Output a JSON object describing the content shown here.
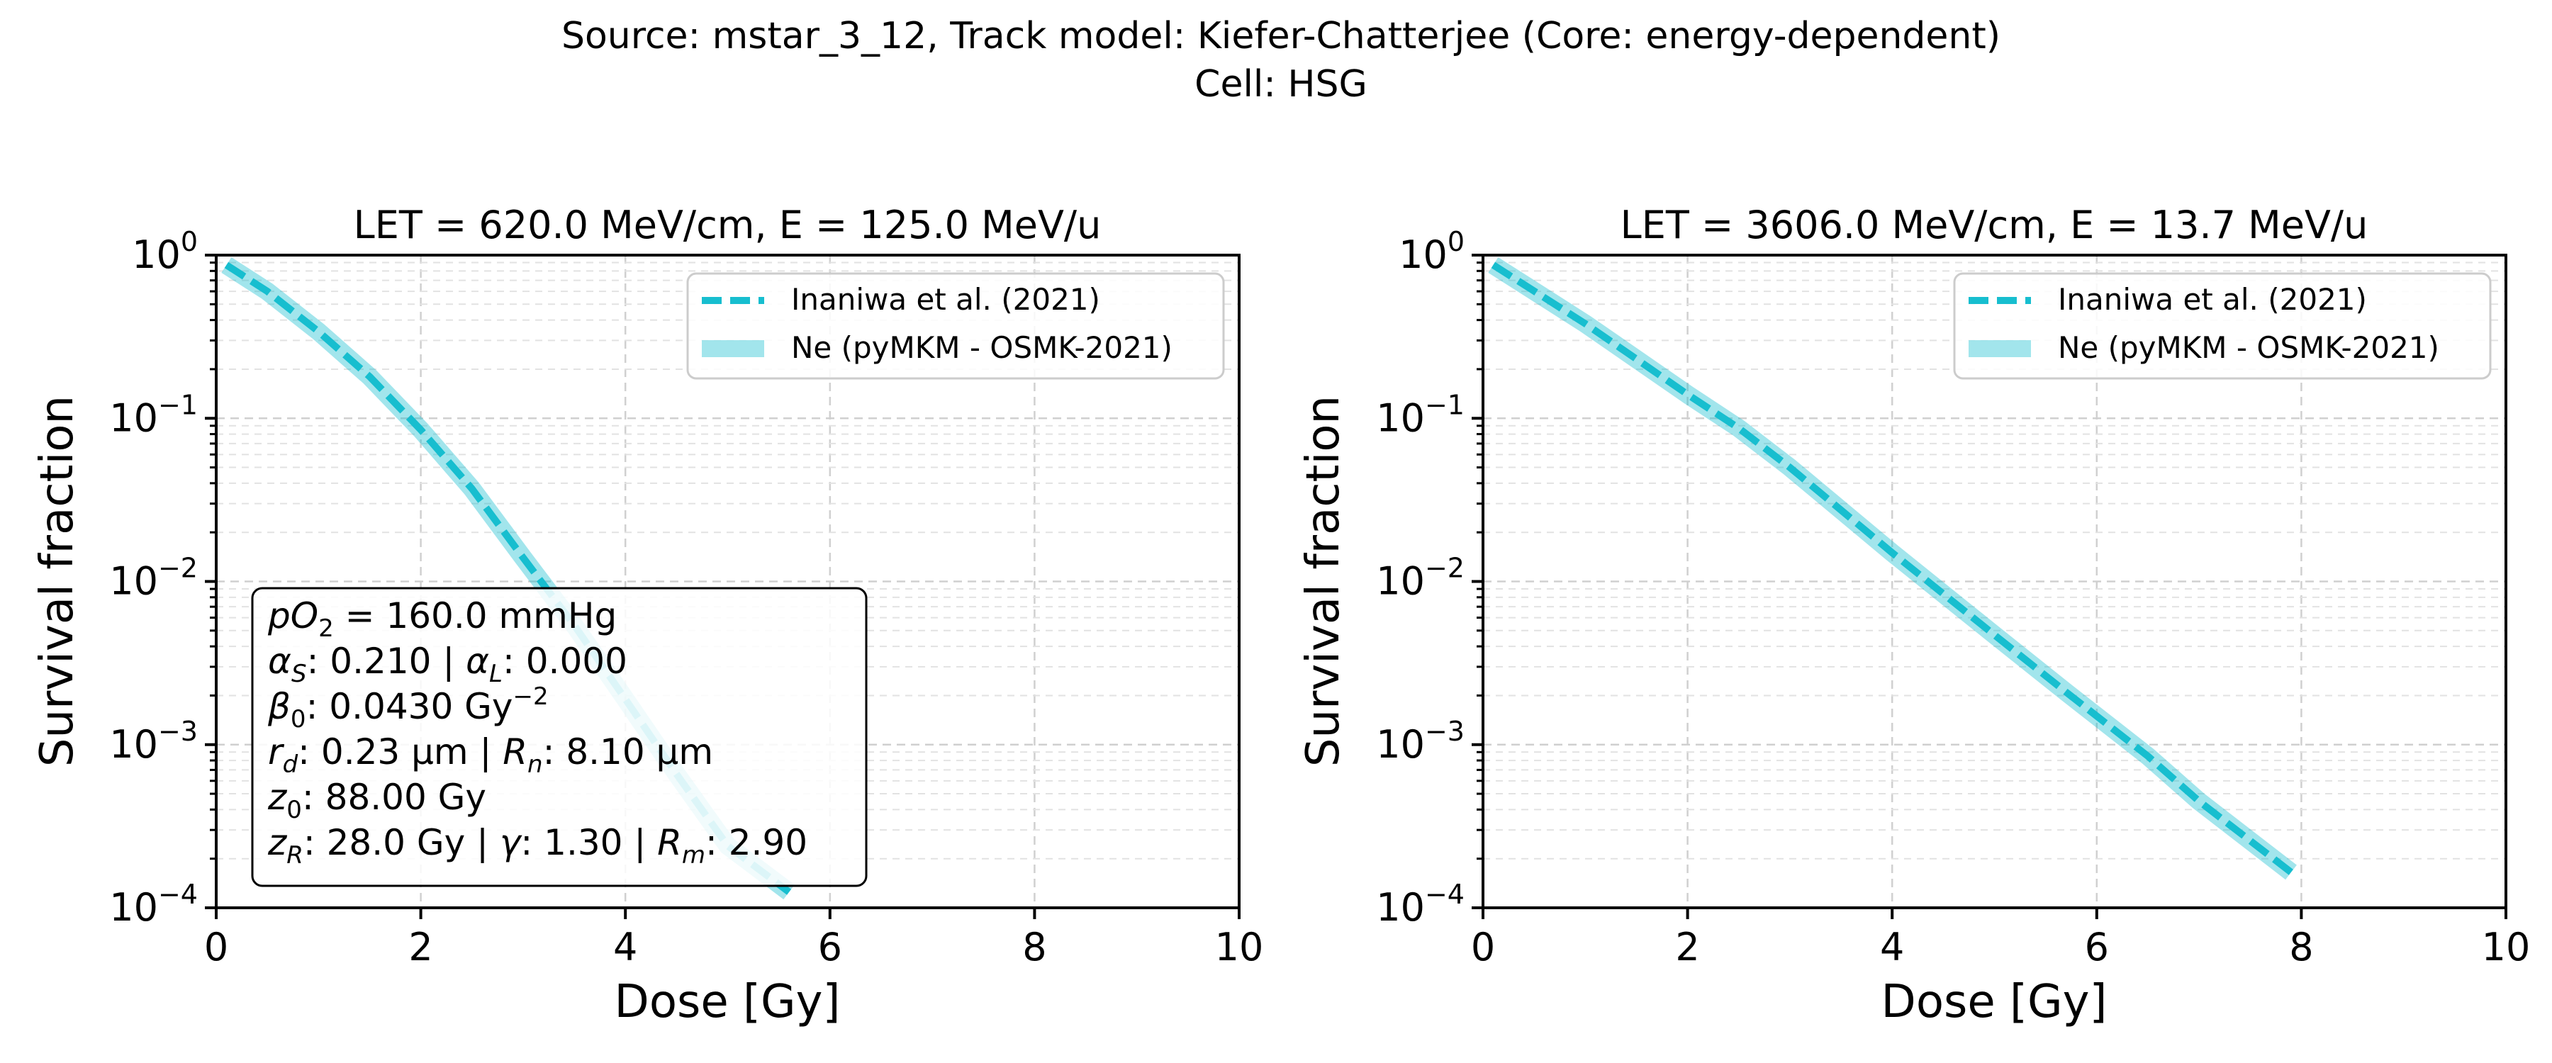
{
  "figure": {
    "suptitle_line1": "Source: mstar_3_12, Track model: Kiefer-Chatterjee (Core: energy-dependent)",
    "suptitle_line2": "Cell: HSG"
  },
  "colors": {
    "reference": "#17becf",
    "model": "#17becf",
    "grid": "#d0d0d0",
    "axis": "#000000"
  },
  "chart_data": [
    {
      "type": "line",
      "title": "LET = 620.0 MeV/cm, E = 125.0 MeV/u",
      "xlabel": "Dose [Gy]",
      "ylabel": "Survival fraction",
      "xlim": [
        0,
        10
      ],
      "ylim": [
        0.0001,
        1
      ],
      "yscale": "log",
      "xticks": [
        0,
        2,
        4,
        6,
        8,
        10
      ],
      "xtick_labels": [
        "0",
        "2",
        "4",
        "6",
        "8",
        "10"
      ],
      "yticks": [
        1,
        0.1,
        0.01,
        0.001,
        0.0001
      ],
      "ytick_labels": [
        {
          "base": "10",
          "exp": "0"
        },
        {
          "base": "10",
          "exp": "−1"
        },
        {
          "base": "10",
          "exp": "−2"
        },
        {
          "base": "10",
          "exp": "−3"
        },
        {
          "base": "10",
          "exp": "−4"
        }
      ],
      "grid": true,
      "legend_position": "upper right",
      "series": [
        {
          "name": "Inaniwa et al. (2021)",
          "style": "dashed",
          "x": [
            0.1,
            0.5,
            1.0,
            1.5,
            2.0,
            2.5,
            3.0,
            3.5,
            4.0,
            4.5,
            5.0,
            5.6
          ],
          "y": [
            0.87,
            0.6,
            0.34,
            0.18,
            0.085,
            0.037,
            0.014,
            0.0054,
            0.0019,
            0.00066,
            0.00024,
            0.000125
          ]
        },
        {
          "name": "Ne (pyMKM - OSMK-2021)",
          "style": "solid-wide",
          "x": [
            0.1,
            0.5,
            1.0,
            1.5,
            2.0,
            2.5,
            3.0,
            3.5,
            4.0,
            4.5,
            5.0,
            5.6
          ],
          "y": [
            0.87,
            0.6,
            0.34,
            0.18,
            0.085,
            0.037,
            0.014,
            0.0054,
            0.0019,
            0.00066,
            0.00024,
            0.000125
          ]
        }
      ],
      "parameters": {
        "line1": {
          "a": "pO",
          "asub": "2",
          "rest": " = 160.0 mmHg"
        },
        "line2": {
          "a": "α",
          "asub": "S",
          "mid": ": 0.210 | ",
          "b": "α",
          "bsub": "L",
          "rest": ": 0.000"
        },
        "line3": {
          "a": "β",
          "asub": "0",
          "mid": ": 0.0430 Gy",
          "sup": "−2"
        },
        "line4": {
          "a": "r",
          "asub": "d",
          "mid": ": 0.23 μm | ",
          "b": "R",
          "bsub": "n",
          "rest": ": 8.10 μm"
        },
        "line5": {
          "a": "z",
          "asub": "0",
          "rest": ": 88.00 Gy"
        },
        "line6": {
          "a": "z",
          "asub": "R",
          "mid": ": 28.0 Gy | ",
          "b": "γ",
          "mid2": ": 1.30 | ",
          "c": "R",
          "csub": "m",
          "rest": ": 2.90"
        }
      }
    },
    {
      "type": "line",
      "title": "LET = 3606.0 MeV/cm, E = 13.7 MeV/u",
      "xlabel": "Dose [Gy]",
      "ylabel": "Survival fraction",
      "xlim": [
        0,
        10
      ],
      "ylim": [
        0.0001,
        1
      ],
      "yscale": "log",
      "xticks": [
        0,
        2,
        4,
        6,
        8,
        10
      ],
      "xtick_labels": [
        "0",
        "2",
        "4",
        "6",
        "8",
        "10"
      ],
      "yticks": [
        1,
        0.1,
        0.01,
        0.001,
        0.0001
      ],
      "ytick_labels": [
        {
          "base": "10",
          "exp": "0"
        },
        {
          "base": "10",
          "exp": "−1"
        },
        {
          "base": "10",
          "exp": "−2"
        },
        {
          "base": "10",
          "exp": "−3"
        },
        {
          "base": "10",
          "exp": "−4"
        }
      ],
      "grid": true,
      "legend_position": "upper right",
      "series": [
        {
          "name": "Inaniwa et al. (2021)",
          "style": "dashed",
          "x": [
            0.1,
            1.0,
            2.0,
            2.5,
            3.0,
            4.0,
            5.0,
            5.7,
            6.5,
            7.0,
            7.9
          ],
          "y": [
            0.87,
            0.38,
            0.14,
            0.087,
            0.05,
            0.015,
            0.0047,
            0.0021,
            0.00085,
            0.00045,
            0.000165
          ]
        },
        {
          "name": "Ne (pyMKM - OSMK-2021)",
          "style": "solid-wide",
          "x": [
            0.1,
            1.0,
            2.0,
            2.5,
            3.0,
            4.0,
            5.0,
            5.7,
            6.5,
            7.0,
            7.9
          ],
          "y": [
            0.87,
            0.38,
            0.14,
            0.087,
            0.05,
            0.015,
            0.0047,
            0.0021,
            0.00085,
            0.00045,
            0.000165
          ]
        }
      ]
    }
  ]
}
